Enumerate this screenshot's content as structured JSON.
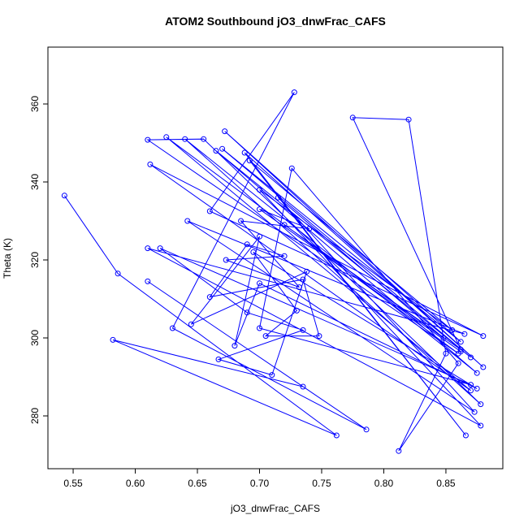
{
  "chart_data": {
    "type": "line",
    "title": "ATOM2 Southbound jO3_dnwFrac_CAFS",
    "x_label": "jO3_dnwFrac_CAFS",
    "y_label": "Theta (K)",
    "markers": true,
    "series": [
      {
        "color": "#0000ff",
        "x": [
          0.543,
          0.586,
          0.762,
          0.582,
          0.735,
          0.61,
          0.786,
          0.63,
          0.728,
          0.66,
          0.88,
          0.612,
          0.87,
          0.625,
          0.86,
          0.61,
          0.655,
          0.878,
          0.64,
          0.875,
          0.665,
          0.87,
          0.67,
          0.862,
          0.672,
          0.88,
          0.688,
          0.866,
          0.692,
          0.855,
          0.7,
          0.878,
          0.61,
          0.865,
          0.642,
          0.873,
          0.715,
          0.848,
          0.72,
          0.862,
          0.775,
          0.82,
          0.85,
          0.812,
          0.86,
          0.726,
          0.7,
          0.87,
          0.62,
          0.69,
          0.735,
          0.667,
          0.71,
          0.738,
          0.645,
          0.7,
          0.68,
          0.7,
          0.875,
          0.695,
          0.73,
          0.705,
          0.748,
          0.735,
          0.66,
          0.69,
          0.72,
          0.673,
          0.732,
          0.685,
          0.74,
          0.7,
          0.862
        ],
        "values": [
          336.5,
          316.5,
          275,
          299.5,
          287.5,
          314.5,
          276.5,
          302.5,
          363,
          332.5,
          300.5,
          344.5,
          286.5,
          351.5,
          296,
          350.8,
          351,
          283,
          351,
          291,
          348,
          295,
          348.5,
          299,
          353,
          292.5,
          347.5,
          275,
          345.5,
          302,
          338,
          277.5,
          323,
          301,
          330,
          281,
          336,
          300,
          329,
          297,
          356.5,
          356,
          296,
          271,
          293.5,
          343.5,
          302.5,
          288,
          323,
          306.5,
          302,
          294.5,
          290.5,
          317,
          303.5,
          326,
          298,
          314,
          287,
          322,
          307,
          300.5,
          300.5,
          315,
          310.5,
          324,
          321,
          320,
          313,
          330,
          328,
          333,
          296.5
        ]
      }
    ],
    "xlim": [
      0.5297,
      0.8958
    ],
    "ylim": [
      266.46,
      374.58
    ],
    "xticks": [
      0.55,
      {
        "value": 0.6,
        "label": "0.60"
      },
      0.65,
      {
        "value": 0.7,
        "label": "0.70"
      },
      0.75,
      {
        "value": 0.8,
        "label": "0.80"
      },
      0.85
    ],
    "yticks": [
      280,
      300,
      320,
      340,
      360
    ]
  }
}
